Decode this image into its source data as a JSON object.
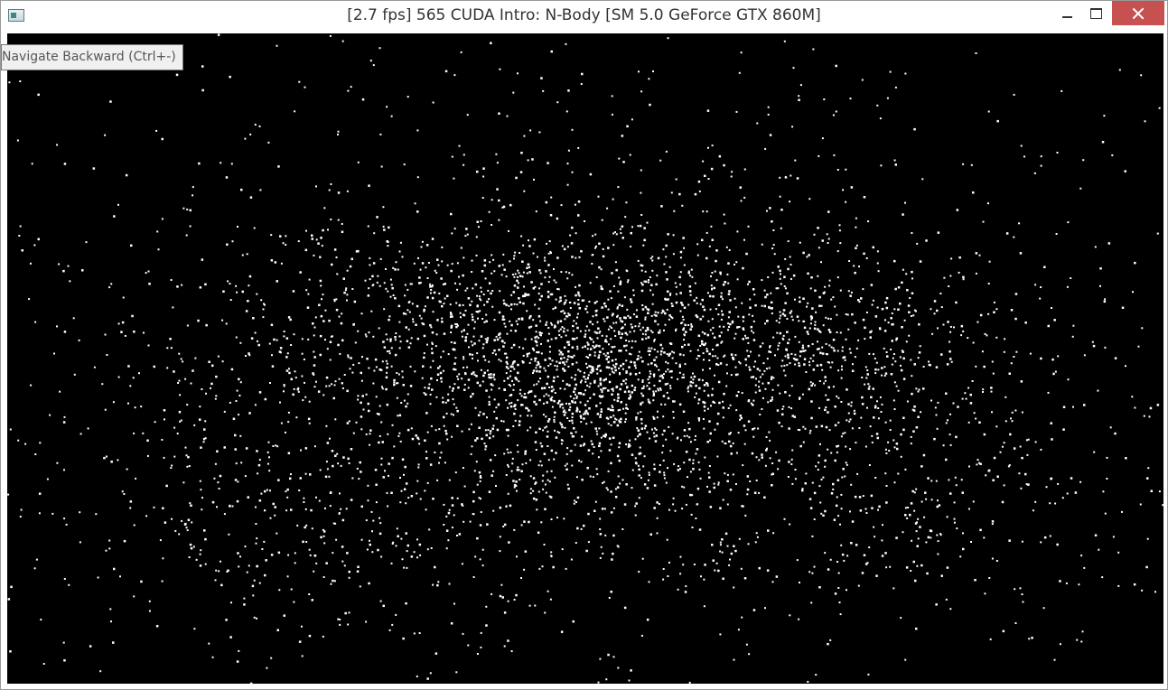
{
  "window": {
    "title": "[2.7 fps] 565 CUDA Intro: N-Body [SM 5.0 GeForce GTX 860M]",
    "app_icon": "application-icon",
    "controls": {
      "minimize_icon": "minimize-icon",
      "maximize_icon": "maximize-icon",
      "close_icon": "close-icon",
      "close_color": "#c75050"
    }
  },
  "tooltip": {
    "text": "Navigate Backward (Ctrl+-)"
  },
  "simulation": {
    "background_color": "#000000",
    "particle_color": "#ffffff"
  }
}
